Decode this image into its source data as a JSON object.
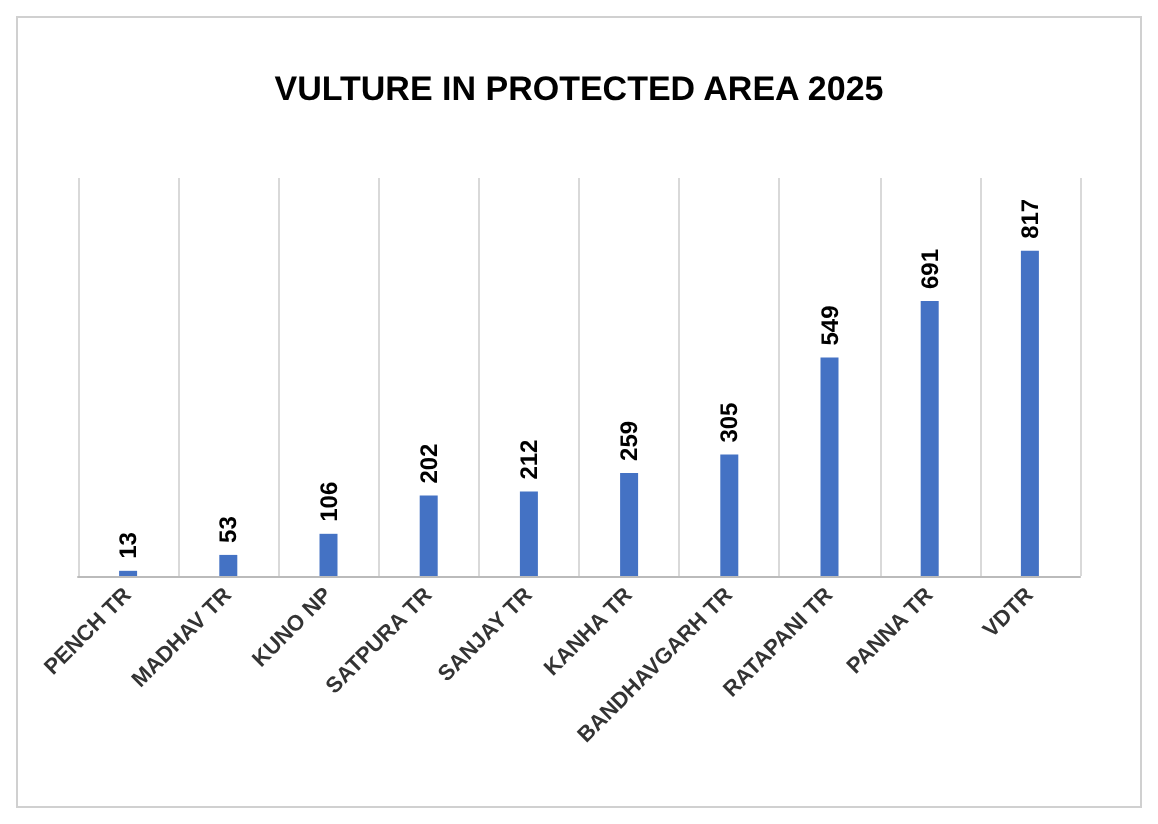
{
  "chart_data": {
    "type": "bar",
    "title": "VULTURE IN PROTECTED AREA 2025",
    "categories": [
      "PENCH TR",
      "MADHAV TR",
      "KUNO NP",
      "SATPURA TR",
      "SANJAY TR",
      "KANHA TR",
      "BANDHAVGARH TR",
      "RATAPANI TR",
      "PANNA TR",
      "VDTR"
    ],
    "values": [
      13,
      53,
      106,
      202,
      212,
      259,
      305,
      549,
      691,
      817
    ],
    "color": "#4472c4",
    "data_labels": true,
    "grid": "x"
  }
}
